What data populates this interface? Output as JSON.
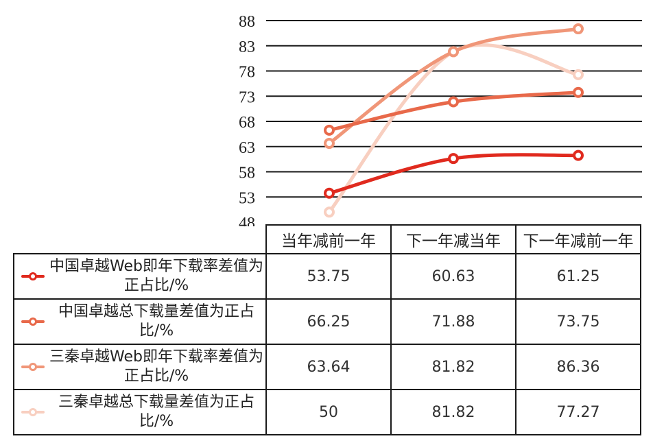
{
  "chart_data": {
    "type": "line",
    "categories": [
      "当年减前一年",
      "下一年减当年",
      "下一年减前一年"
    ],
    "ylim": [
      48,
      88
    ],
    "yticks": [
      "48",
      "53",
      "58",
      "63",
      "68",
      "73",
      "78",
      "83",
      "88"
    ],
    "grid": true,
    "legend_placement": "data table left column",
    "series": [
      {
        "name": "中国卓越Web即年下载率差值为正占比/%",
        "color": "#e02a1e",
        "values": [
          53.75,
          60.63,
          61.25
        ],
        "labels": [
          "53.75",
          "60.63",
          "61.25"
        ]
      },
      {
        "name": "中国卓越总下载量差值为正占比/%",
        "color": "#e8694a",
        "values": [
          66.25,
          71.88,
          73.75
        ],
        "labels": [
          "66.25",
          "71.88",
          "73.75"
        ]
      },
      {
        "name": "三秦卓越Web即年下载率差值为正占比/%",
        "color": "#f09678",
        "values": [
          63.64,
          81.82,
          86.36
        ],
        "labels": [
          "63.64",
          "81.82",
          "86.36"
        ]
      },
      {
        "name": "三秦卓越总下载量差值为正占比/%",
        "color": "#f8cfc0",
        "values": [
          50,
          81.82,
          77.27
        ],
        "labels": [
          "50",
          "81.82",
          "77.27"
        ]
      }
    ]
  }
}
